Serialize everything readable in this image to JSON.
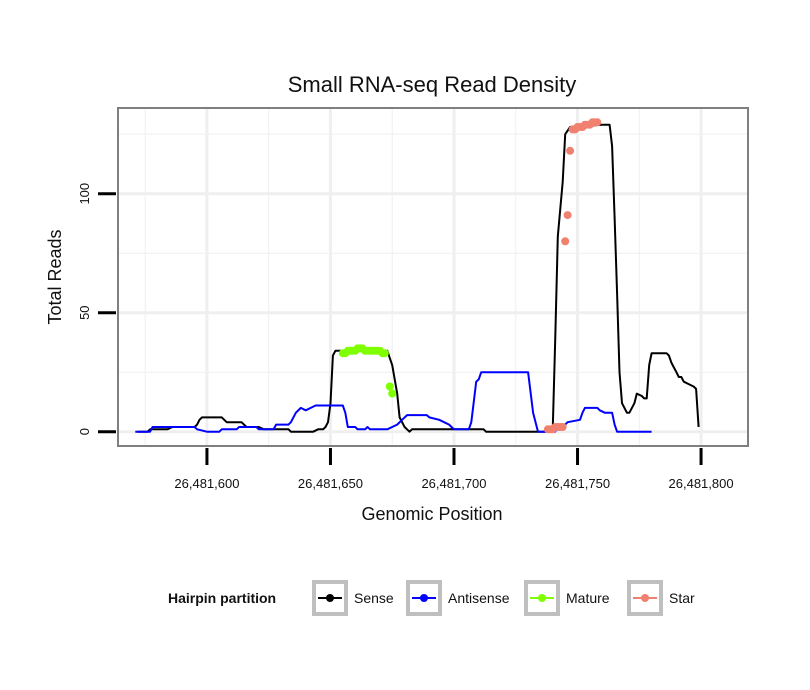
{
  "chart_data": {
    "type": "line",
    "title": "Small RNA-seq Read Density",
    "xlabel": "Genomic Position",
    "ylabel": "Total Reads",
    "xlim": [
      26481564,
      26481819
    ],
    "ylim": [
      -6,
      136
    ],
    "x_ticks": [
      {
        "value": 26481600,
        "label": "26,481,600"
      },
      {
        "value": 26481650,
        "label": "26,481,650"
      },
      {
        "value": 26481700,
        "label": "26,481,700"
      },
      {
        "value": 26481750,
        "label": "26,481,750"
      },
      {
        "value": 26481800,
        "label": "26,481,800"
      }
    ],
    "y_ticks": [
      {
        "value": 0,
        "label": "0"
      },
      {
        "value": 50,
        "label": "50"
      },
      {
        "value": 100,
        "label": "100"
      }
    ],
    "grid": true,
    "legend": {
      "title": "Hairpin partition",
      "position": "bottom",
      "entries": [
        {
          "name": "Sense",
          "color": "#000000"
        },
        {
          "name": "Antisense",
          "color": "#0000ff"
        },
        {
          "name": "Mature",
          "color": "#7fff00"
        },
        {
          "name": "Star",
          "color": "#f08070"
        }
      ]
    },
    "series": [
      {
        "name": "Sense",
        "color": "#000000",
        "style": "line",
        "points": [
          [
            26481572,
            0
          ],
          [
            26481576,
            0
          ],
          [
            26481577,
            1
          ],
          [
            26481584,
            1
          ],
          [
            26481586,
            2
          ],
          [
            26481595,
            2
          ],
          [
            26481596,
            3
          ],
          [
            26481597,
            5
          ],
          [
            26481598,
            6
          ],
          [
            26481606,
            6
          ],
          [
            26481607,
            5
          ],
          [
            26481608,
            4
          ],
          [
            26481614,
            4
          ],
          [
            26481616,
            2
          ],
          [
            26481621,
            2
          ],
          [
            26481623,
            1
          ],
          [
            26481633,
            1
          ],
          [
            26481634,
            0
          ],
          [
            26481643,
            0
          ],
          [
            26481645,
            1
          ],
          [
            26481647,
            1
          ],
          [
            26481648,
            2
          ],
          [
            26481649,
            4
          ],
          [
            26481650,
            12
          ],
          [
            26481651,
            32
          ],
          [
            26481652,
            34
          ],
          [
            26481673,
            34
          ],
          [
            26481675,
            28
          ],
          [
            26481677,
            16
          ],
          [
            26481678,
            6
          ],
          [
            26481680,
            2
          ],
          [
            26481682,
            0
          ],
          [
            26481683,
            1
          ],
          [
            26481712,
            1
          ],
          [
            26481713,
            0
          ],
          [
            26481733,
            0
          ],
          [
            26481738,
            0
          ],
          [
            26481740,
            2
          ],
          [
            26481741,
            40
          ],
          [
            26481742,
            82
          ],
          [
            26481744,
            105
          ],
          [
            26481745,
            125
          ],
          [
            26481747,
            128
          ],
          [
            26481760,
            129
          ],
          [
            26481763,
            129
          ],
          [
            26481764,
            120
          ],
          [
            26481765,
            90
          ],
          [
            26481766,
            58
          ],
          [
            26481767,
            25
          ],
          [
            26481768,
            12
          ],
          [
            26481770,
            8
          ],
          [
            26481771,
            8
          ],
          [
            26481772,
            10
          ],
          [
            26481773,
            12
          ],
          [
            26481774,
            16
          ],
          [
            26481776,
            15
          ],
          [
            26481777,
            14
          ],
          [
            26481778,
            14
          ],
          [
            26481779,
            28
          ],
          [
            26481780,
            33
          ],
          [
            26481786,
            33
          ],
          [
            26481787,
            32
          ],
          [
            26481788,
            29
          ],
          [
            26481789,
            27
          ],
          [
            26481790,
            25
          ],
          [
            26481791,
            23
          ],
          [
            26481792,
            23
          ],
          [
            26481793,
            21
          ],
          [
            26481795,
            20
          ],
          [
            26481797,
            19
          ],
          [
            26481798,
            18
          ],
          [
            26481799,
            2
          ]
        ]
      },
      {
        "name": "Antisense",
        "color": "#0000ff",
        "style": "line",
        "points": [
          [
            26481571,
            0
          ],
          [
            26481577,
            0
          ],
          [
            26481578,
            2
          ],
          [
            26481595,
            2
          ],
          [
            26481596,
            1
          ],
          [
            26481600,
            0
          ],
          [
            26481605,
            0
          ],
          [
            26481606,
            1
          ],
          [
            26481612,
            1
          ],
          [
            26481613,
            2
          ],
          [
            26481620,
            2
          ],
          [
            26481621,
            1
          ],
          [
            26481627,
            1
          ],
          [
            26481628,
            3
          ],
          [
            26481633,
            3
          ],
          [
            26481634,
            4
          ],
          [
            26481636,
            8
          ],
          [
            26481638,
            10
          ],
          [
            26481640,
            9
          ],
          [
            26481642,
            10
          ],
          [
            26481644,
            11
          ],
          [
            26481655,
            11
          ],
          [
            26481656,
            8
          ],
          [
            26481657,
            2
          ],
          [
            26481660,
            2
          ],
          [
            26481661,
            1
          ],
          [
            26481664,
            1
          ],
          [
            26481665,
            2
          ],
          [
            26481666,
            1
          ],
          [
            26481673,
            1
          ],
          [
            26481675,
            2
          ],
          [
            26481677,
            3
          ],
          [
            26481679,
            5
          ],
          [
            26481681,
            7
          ],
          [
            26481689,
            7
          ],
          [
            26481690,
            6
          ],
          [
            26481694,
            5
          ],
          [
            26481696,
            4
          ],
          [
            26481698,
            3
          ],
          [
            26481699,
            2
          ],
          [
            26481700,
            1
          ],
          [
            26481706,
            1
          ],
          [
            26481707,
            4
          ],
          [
            26481709,
            21
          ],
          [
            26481710,
            22
          ],
          [
            26481711,
            25
          ],
          [
            26481730,
            25
          ],
          [
            26481732,
            8
          ],
          [
            26481734,
            0
          ],
          [
            26481741,
            0
          ],
          [
            26481742,
            2
          ],
          [
            26481745,
            3
          ],
          [
            26481746,
            4
          ],
          [
            26481751,
            5
          ],
          [
            26481752,
            8
          ],
          [
            26481753,
            10
          ],
          [
            26481758,
            10
          ],
          [
            26481759,
            9
          ],
          [
            26481761,
            8
          ],
          [
            26481764,
            8
          ],
          [
            26481765,
            3
          ],
          [
            26481766,
            0
          ],
          [
            26481780,
            0
          ]
        ]
      },
      {
        "name": "Mature",
        "color": "#7fff00",
        "style": "points",
        "points": [
          [
            26481655,
            33
          ],
          [
            26481656,
            33
          ],
          [
            26481657,
            34
          ],
          [
            26481658,
            34
          ],
          [
            26481659,
            34
          ],
          [
            26481660,
            34
          ],
          [
            26481661,
            35
          ],
          [
            26481662,
            35
          ],
          [
            26481663,
            35
          ],
          [
            26481664,
            34
          ],
          [
            26481665,
            34
          ],
          [
            26481666,
            34
          ],
          [
            26481667,
            34
          ],
          [
            26481668,
            34
          ],
          [
            26481669,
            34
          ],
          [
            26481670,
            34
          ],
          [
            26481671,
            33
          ],
          [
            26481672,
            33
          ],
          [
            26481674,
            19
          ],
          [
            26481675,
            16
          ]
        ]
      },
      {
        "name": "Star",
        "color": "#f08070",
        "style": "points",
        "points": [
          [
            26481738,
            1
          ],
          [
            26481739,
            1
          ],
          [
            26481740,
            1
          ],
          [
            26481741,
            2
          ],
          [
            26481742,
            2
          ],
          [
            26481743,
            2
          ],
          [
            26481744,
            2
          ],
          [
            26481745,
            80
          ],
          [
            26481746,
            91
          ],
          [
            26481747,
            118
          ],
          [
            26481748,
            127
          ],
          [
            26481749,
            127
          ],
          [
            26481750,
            128
          ],
          [
            26481751,
            128
          ],
          [
            26481752,
            128
          ],
          [
            26481753,
            129
          ],
          [
            26481754,
            129
          ],
          [
            26481755,
            129
          ],
          [
            26481756,
            130
          ],
          [
            26481757,
            130
          ],
          [
            26481758,
            130
          ]
        ]
      }
    ]
  }
}
